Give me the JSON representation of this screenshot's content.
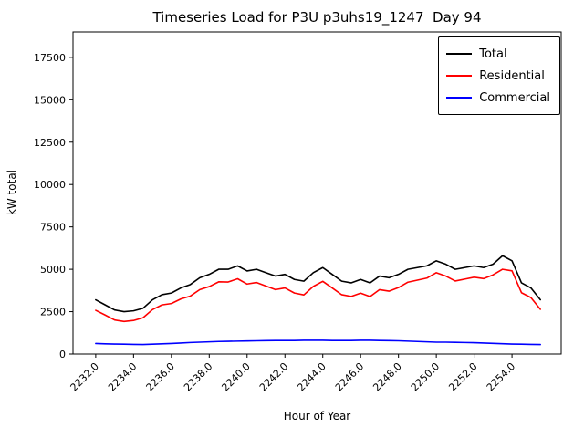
{
  "chart_data": {
    "type": "line",
    "title": "Timeseries Load for P3U p3uhs19_1247  Day 94",
    "xlabel": "Hour of Year",
    "ylabel": "kW total",
    "xlim": [
      2230.8,
      2256.6
    ],
    "ylim": [
      0,
      19000
    ],
    "x_ticks": [
      2232.0,
      2234.0,
      2236.0,
      2238.0,
      2240.0,
      2242.0,
      2244.0,
      2246.0,
      2248.0,
      2250.0,
      2252.0,
      2254.0
    ],
    "x_tick_labels": [
      "2232.0",
      "2234.0",
      "2236.0",
      "2238.0",
      "2240.0",
      "2242.0",
      "2244.0",
      "2246.0",
      "2248.0",
      "2250.0",
      "2252.0",
      "2254.0"
    ],
    "y_ticks": [
      0,
      2500,
      5000,
      7500,
      10000,
      12500,
      15000,
      17500
    ],
    "y_tick_labels": [
      "0",
      "2500",
      "5000",
      "7500",
      "10000",
      "12500",
      "15000",
      "17500"
    ],
    "grid": false,
    "legend_position": "upper right",
    "x": [
      2232.0,
      2232.5,
      2233.0,
      2233.5,
      2234.0,
      2234.5,
      2235.0,
      2235.5,
      2236.0,
      2236.5,
      2237.0,
      2237.5,
      2238.0,
      2238.5,
      2239.0,
      2239.5,
      2240.0,
      2240.5,
      2241.0,
      2241.5,
      2242.0,
      2242.5,
      2243.0,
      2243.5,
      2244.0,
      2244.5,
      2245.0,
      2245.5,
      2246.0,
      2246.5,
      2247.0,
      2247.5,
      2248.0,
      2248.5,
      2249.0,
      2249.5,
      2250.0,
      2250.5,
      2251.0,
      2251.5,
      2252.0,
      2252.5,
      2253.0,
      2253.5,
      2254.0,
      2254.5,
      2255.0,
      2255.5
    ],
    "series": [
      {
        "name": "Total",
        "color": "#000000",
        "values": [
          3200,
          2900,
          2600,
          2500,
          2550,
          2700,
          3200,
          3500,
          3600,
          3900,
          4100,
          4500,
          4700,
          5000,
          5000,
          5200,
          4900,
          5000,
          4800,
          4600,
          4700,
          4400,
          4300,
          4800,
          5100,
          4700,
          4300,
          4200,
          4400,
          4200,
          4600,
          4500,
          4700,
          5000,
          5100,
          5200,
          5500,
          5300,
          5000,
          5100,
          5200,
          5100,
          5300,
          5800,
          5500,
          4200,
          3900,
          3200
        ]
      },
      {
        "name": "Residential",
        "color": "#ff0000",
        "values": [
          2580,
          2300,
          2010,
          1920,
          1980,
          2140,
          2620,
          2900,
          2980,
          3250,
          3420,
          3800,
          3980,
          4260,
          4250,
          4440,
          4130,
          4220,
          4010,
          3800,
          3900,
          3600,
          3490,
          3990,
          4290,
          3900,
          3500,
          3400,
          3590,
          3390,
          3800,
          3710,
          3920,
          4240,
          4360,
          4480,
          4800,
          4600,
          4310,
          4420,
          4530,
          4450,
          4670,
          5000,
          4910,
          3620,
          3330,
          2640
        ]
      },
      {
        "name": "Commercial",
        "color": "#0000ff",
        "values": [
          620,
          600,
          590,
          580,
          570,
          560,
          580,
          600,
          620,
          650,
          680,
          700,
          720,
          740,
          750,
          760,
          770,
          780,
          790,
          800,
          800,
          800,
          810,
          810,
          810,
          800,
          800,
          800,
          810,
          810,
          800,
          790,
          780,
          760,
          740,
          720,
          700,
          700,
          690,
          680,
          670,
          650,
          630,
          610,
          590,
          580,
          570,
          560
        ]
      }
    ]
  }
}
